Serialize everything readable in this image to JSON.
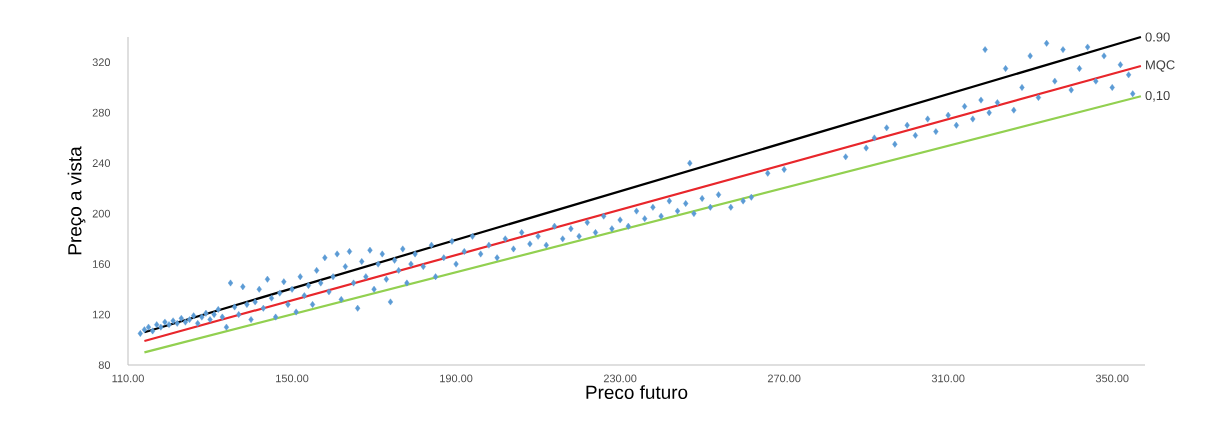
{
  "chart_data": {
    "type": "scatter",
    "xlabel": "Preco futuro",
    "ylabel": "Preço a vista",
    "xlim": [
      110,
      358
    ],
    "ylim": [
      80,
      340
    ],
    "xticks": [
      {
        "value": 110,
        "label": "110.00"
      },
      {
        "value": 150,
        "label": "150.00"
      },
      {
        "value": 190,
        "label": "190.00"
      },
      {
        "value": 230,
        "label": "230.00"
      },
      {
        "value": 270,
        "label": "270.00"
      },
      {
        "value": 310,
        "label": "310.00"
      },
      {
        "value": 350,
        "label": "350.00"
      }
    ],
    "yticks": [
      80,
      120,
      160,
      200,
      240,
      280,
      320
    ],
    "series": [
      {
        "color": "#5b9bd5",
        "marker": "diamond",
        "x": [
          113,
          114,
          115,
          116,
          117,
          118,
          119,
          120,
          121,
          122,
          123,
          124,
          125,
          126,
          127,
          128,
          129,
          130,
          131,
          132,
          133,
          134,
          135,
          136,
          137,
          138,
          139,
          140,
          141,
          142,
          143,
          144,
          145,
          146,
          147,
          148,
          149,
          150,
          151,
          152,
          153,
          154,
          155,
          156,
          157,
          158,
          159,
          160,
          161,
          162,
          163,
          164,
          165,
          166,
          167,
          168,
          169,
          170,
          171,
          172,
          173,
          174,
          175,
          176,
          177,
          178,
          179,
          180,
          182,
          184,
          185,
          187,
          189,
          190,
          192,
          194,
          196,
          198,
          200,
          202,
          204,
          206,
          208,
          210,
          212,
          214,
          216,
          218,
          220,
          222,
          224,
          226,
          228,
          230,
          232,
          234,
          236,
          238,
          240,
          242,
          244,
          246,
          247,
          248,
          250,
          252,
          254,
          257,
          260,
          262,
          266,
          270,
          285,
          290,
          292,
          295,
          297,
          300,
          302,
          305,
          307,
          310,
          312,
          314,
          316,
          318,
          319,
          320,
          322,
          324,
          326,
          328,
          330,
          332,
          334,
          336,
          338,
          340,
          342,
          344,
          346,
          348,
          350,
          352,
          354,
          355
        ],
        "values": [
          105,
          108,
          110,
          107,
          112,
          110,
          114,
          112,
          115,
          113,
          117,
          114,
          116,
          119,
          113,
          118,
          121,
          116,
          120,
          124,
          118,
          110,
          145,
          126,
          120,
          142,
          128,
          116,
          130,
          140,
          125,
          148,
          133,
          118,
          137,
          146,
          128,
          140,
          122,
          150,
          135,
          143,
          128,
          155,
          145,
          165,
          138,
          150,
          168,
          132,
          158,
          170,
          145,
          125,
          162,
          150,
          171,
          140,
          160,
          168,
          148,
          130,
          163,
          155,
          172,
          145,
          160,
          168,
          158,
          175,
          150,
          165,
          178,
          160,
          170,
          182,
          168,
          175,
          165,
          180,
          172,
          185,
          176,
          182,
          175,
          190,
          180,
          188,
          182,
          193,
          185,
          198,
          188,
          195,
          190,
          202,
          196,
          205,
          198,
          210,
          202,
          208,
          240,
          200,
          212,
          205,
          215,
          205,
          210,
          213,
          232,
          235,
          245,
          252,
          260,
          268,
          255,
          270,
          262,
          275,
          265,
          278,
          270,
          285,
          275,
          290,
          330,
          280,
          288,
          315,
          282,
          300,
          325,
          292,
          335,
          305,
          330,
          298,
          315,
          332,
          305,
          325,
          300,
          318,
          310,
          295
        ]
      },
      {
        "type": "line",
        "name": "0.90",
        "color": "#000000",
        "x": [
          114,
          357
        ],
        "values": [
          106,
          340
        ]
      },
      {
        "type": "line",
        "name": "MQC",
        "color": "#e8262b",
        "x": [
          114,
          357
        ],
        "values": [
          99,
          317
        ]
      },
      {
        "type": "line",
        "name": "0,10",
        "color": "#92d050",
        "x": [
          114,
          357
        ],
        "values": [
          90,
          293
        ]
      }
    ]
  }
}
